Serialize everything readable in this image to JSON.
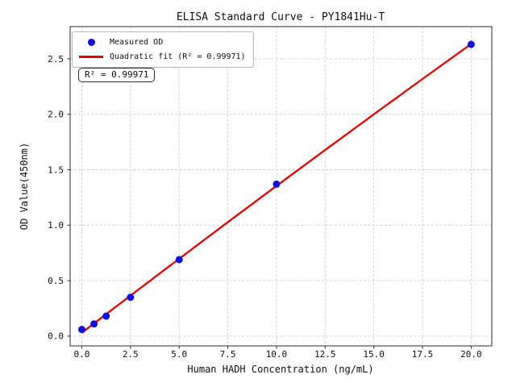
{
  "chart_data": {
    "type": "scatter",
    "title": "ELISA Standard Curve - PY1841Hu-T",
    "xlabel": "Human HADH Concentration (ng/mL)",
    "ylabel": "OD Value(450nm)",
    "xlim": [
      -0.6,
      21.06
    ],
    "ylim": [
      -0.088,
      2.79
    ],
    "grid": true,
    "legend_position": "upper left",
    "xticks": {
      "values": [
        0,
        2.5,
        5,
        7.5,
        10,
        12.5,
        15,
        17.5,
        20
      ],
      "labels": [
        "0.0",
        "2.5",
        "5.0",
        "7.5",
        "10.0",
        "12.5",
        "15.0",
        "17.5",
        "20.0"
      ]
    },
    "yticks": {
      "values": [
        0,
        0.5,
        1,
        1.5,
        2,
        2.5
      ],
      "labels": [
        "0.0",
        "0.5",
        "1.0",
        "1.5",
        "2.0",
        "2.5"
      ]
    },
    "series": [
      {
        "name": "Measured OD",
        "type": "scatter",
        "color": "#0f0fdf",
        "x": [
          0,
          0.625,
          1.25,
          2.5,
          5,
          10,
          20
        ],
        "y": [
          0.06,
          0.11,
          0.18,
          0.35,
          0.69,
          1.37,
          2.63
        ]
      },
      {
        "name": "Quadratic fit (R² = 0.99971)",
        "type": "fit-line",
        "fit": "quadratic",
        "color": "#e60000",
        "x_range": [
          0,
          20
        ],
        "r_squared": 0.99971
      }
    ],
    "annotation": {
      "text": "R² = 0.99971"
    },
    "colors": {
      "marker": "#0f0fdf",
      "fit_line": "#e60000",
      "grid": "#cccccc",
      "frame": "#2b2b2b",
      "background": "#ffffff"
    }
  }
}
